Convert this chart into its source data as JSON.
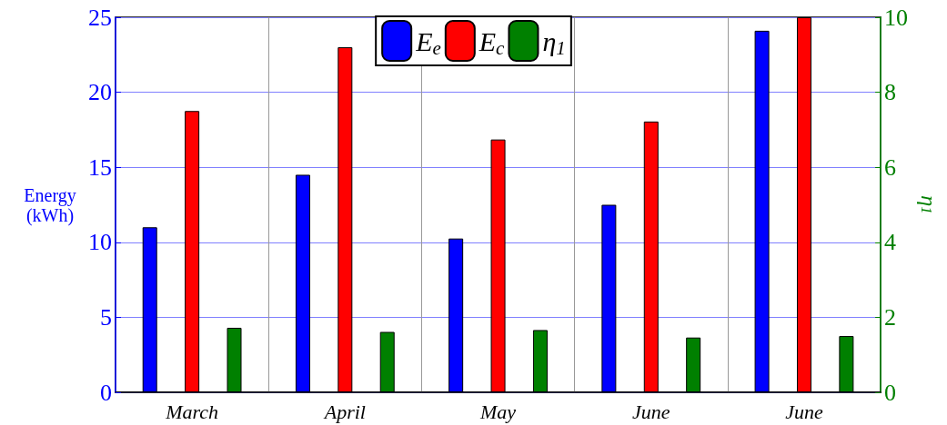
{
  "chart_data": {
    "type": "bar",
    "categories": [
      "March",
      "April",
      "May",
      "June",
      "June"
    ],
    "ylabel": "Energy\n(kWh)",
    "y2label": "η$_{1}$",
    "series": [
      {
        "name": "E$_{e}$",
        "color": "#0000ff",
        "values": [
          11.0,
          14.5,
          10.25,
          12.5,
          24.1
        ]
      },
      {
        "name": "E$_{c}$",
        "color": "#ff0000",
        "values": [
          18.75,
          23.0,
          16.85,
          18.05,
          25
        ]
      },
      {
        "name": "η$_{1}$",
        "color": "#008000",
        "values": [
          1.72,
          1.61,
          1.66,
          1.46,
          1.5
        ],
        "axis": "y2"
      }
    ],
    "ylim": [
      0,
      25
    ],
    "yticks": [
      0,
      5,
      10,
      15,
      20,
      25
    ],
    "y2lim": [
      0,
      10
    ],
    "y2ticks": [
      0,
      2,
      4,
      6,
      8,
      10
    ],
    "grid": true,
    "legend": "top"
  }
}
